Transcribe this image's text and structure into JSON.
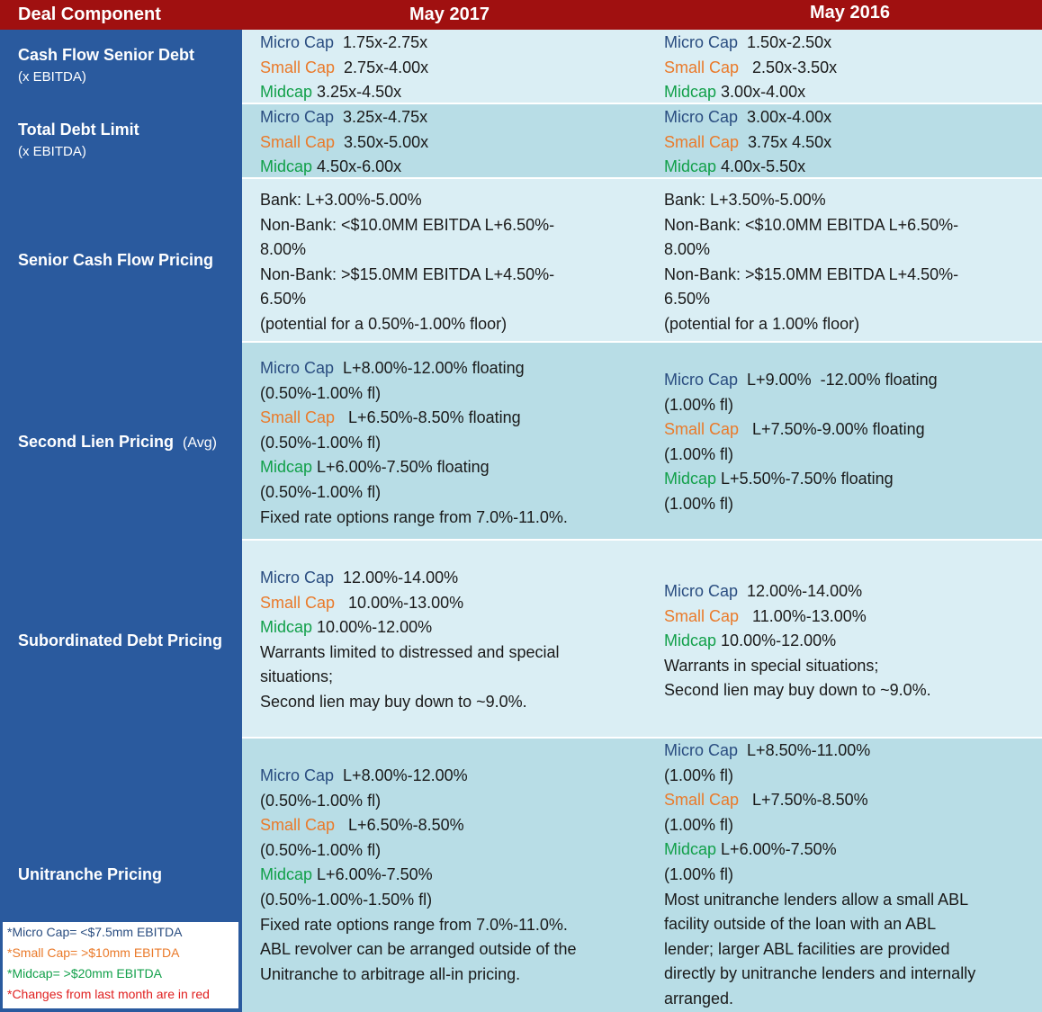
{
  "header": {
    "col0": "Deal Component",
    "col1": "May 2017",
    "col2": "May 2016"
  },
  "colors": {
    "header_bg": "#a01010",
    "sidebar_bg": "#2a5a9e",
    "micro_cap": "#2a4d80",
    "small_cap": "#ea7a2a",
    "midcap": "#12a04a",
    "changes": "#e02020"
  },
  "rows": [
    {
      "label": "Cash Flow Senior Debt",
      "sublabel": "(x EBITDA)",
      "may2017": {
        "micro": "1.75x-2.75x",
        "small": "2.75x-4.00x",
        "mid": "3.25x-4.50x"
      },
      "may2016": {
        "micro": "1.50x-2.50x",
        "small": "2.50x-3.50x",
        "mid": "3.00x-4.00x"
      }
    },
    {
      "label": "Total Debt Limit",
      "sublabel": "(x EBITDA)",
      "may2017": {
        "micro": "3.25x-4.75x",
        "small": "3.50x-5.00x",
        "mid": "4.50x-6.00x"
      },
      "may2016": {
        "micro": "3.00x-4.00x",
        "small": "3.75x 4.50x",
        "mid": "4.00x-5.50x"
      }
    },
    {
      "label": "Senior Cash Flow Pricing",
      "may2017": [
        "Bank: L+3.00%-5.00%",
        "Non-Bank: <$10.0MM EBITDA L+6.50%-",
        "8.00%",
        "Non-Bank: >$15.0MM EBITDA L+4.50%-",
        "6.50%",
        "(potential for a 0.50%-1.00% floor)"
      ],
      "may2016": [
        "Bank: L+3.50%-5.00%",
        "Non-Bank: <$10.0MM EBITDA L+6.50%-",
        "8.00%",
        "Non-Bank: >$15.0MM EBITDA L+4.50%-",
        "6.50%",
        "(potential for a 1.00% floor)"
      ]
    },
    {
      "label": "Second Lien Pricing",
      "label_suffix": "(Avg)",
      "may2017": {
        "micro": "L+8.00%-12.00% floating",
        "micro_fl": "(0.50%-1.00% fl)",
        "small": "L+6.50%-8.50% floating",
        "small_fl": "(0.50%-1.00% fl)",
        "mid": "L+6.00%-7.50% floating",
        "mid_fl": "(0.50%-1.00% fl)",
        "note": "Fixed rate options range from 7.0%-11.0%."
      },
      "may2016": {
        "micro": "L+9.00%  -12.00% floating",
        "micro_fl": "(1.00% fl)",
        "small": "L+7.50%-9.00% floating",
        "small_fl": "(1.00% fl)",
        "mid": "L+5.50%-7.50% floating",
        "mid_fl": "(1.00% fl)"
      }
    },
    {
      "label": "Subordinated Debt Pricing",
      "may2017": {
        "micro": "12.00%-14.00%",
        "small": "10.00%-13.00%",
        "mid": "10.00%-12.00%",
        "note1": "Warrants limited to distressed and special",
        "note2": "situations;",
        "note3": "Second lien may buy down to ~9.0%."
      },
      "may2016": {
        "micro": "12.00%-14.00%",
        "small": "11.00%-13.00%",
        "mid": "10.00%-12.00%",
        "note1": "Warrants in special situations;",
        "note2": "Second lien may buy down to ~9.0%."
      }
    },
    {
      "label": "Unitranche Pricing",
      "may2017": {
        "micro": "L+8.00%-12.00%",
        "micro_fl": "(0.50%-1.00% fl)",
        "small": "L+6.50%-8.50%",
        "small_fl": "(0.50%-1.00% fl)",
        "mid": "L+6.00%-7.50%",
        "mid_fl": "(0.50%-1.00%-1.50% fl)",
        "note1": "Fixed rate options range from 7.0%-11.0%.",
        "note2": "ABL revolver can be arranged outside of the",
        "note3": "Unitranche to arbitrage all-in pricing."
      },
      "may2016": {
        "micro": "L+8.50%-11.00%",
        "micro_fl": "(1.00% fl)",
        "small": "L+7.50%-8.50%",
        "small_fl": "(1.00% fl)",
        "mid": "L+6.00%-7.50%",
        "mid_fl": "(1.00% fl)",
        "note1": "Most unitranche lenders allow a small ABL",
        "note2": "facility outside of the loan with an ABL",
        "note3": "lender; larger ABL facilities are provided",
        "note4": "directly by unitranche lenders and internally",
        "note5": "arranged."
      }
    }
  ],
  "tiers": {
    "micro": "Micro Cap",
    "small": "Small Cap",
    "mid": "Midcap"
  },
  "legend": {
    "micro": "*Micro Cap= <$7.5mm EBITDA",
    "small": "*Small Cap= >$10mm EBITDA",
    "mid": "*Midcap= >$20mm EBITDA",
    "changes": "*Changes from last month are in red"
  }
}
